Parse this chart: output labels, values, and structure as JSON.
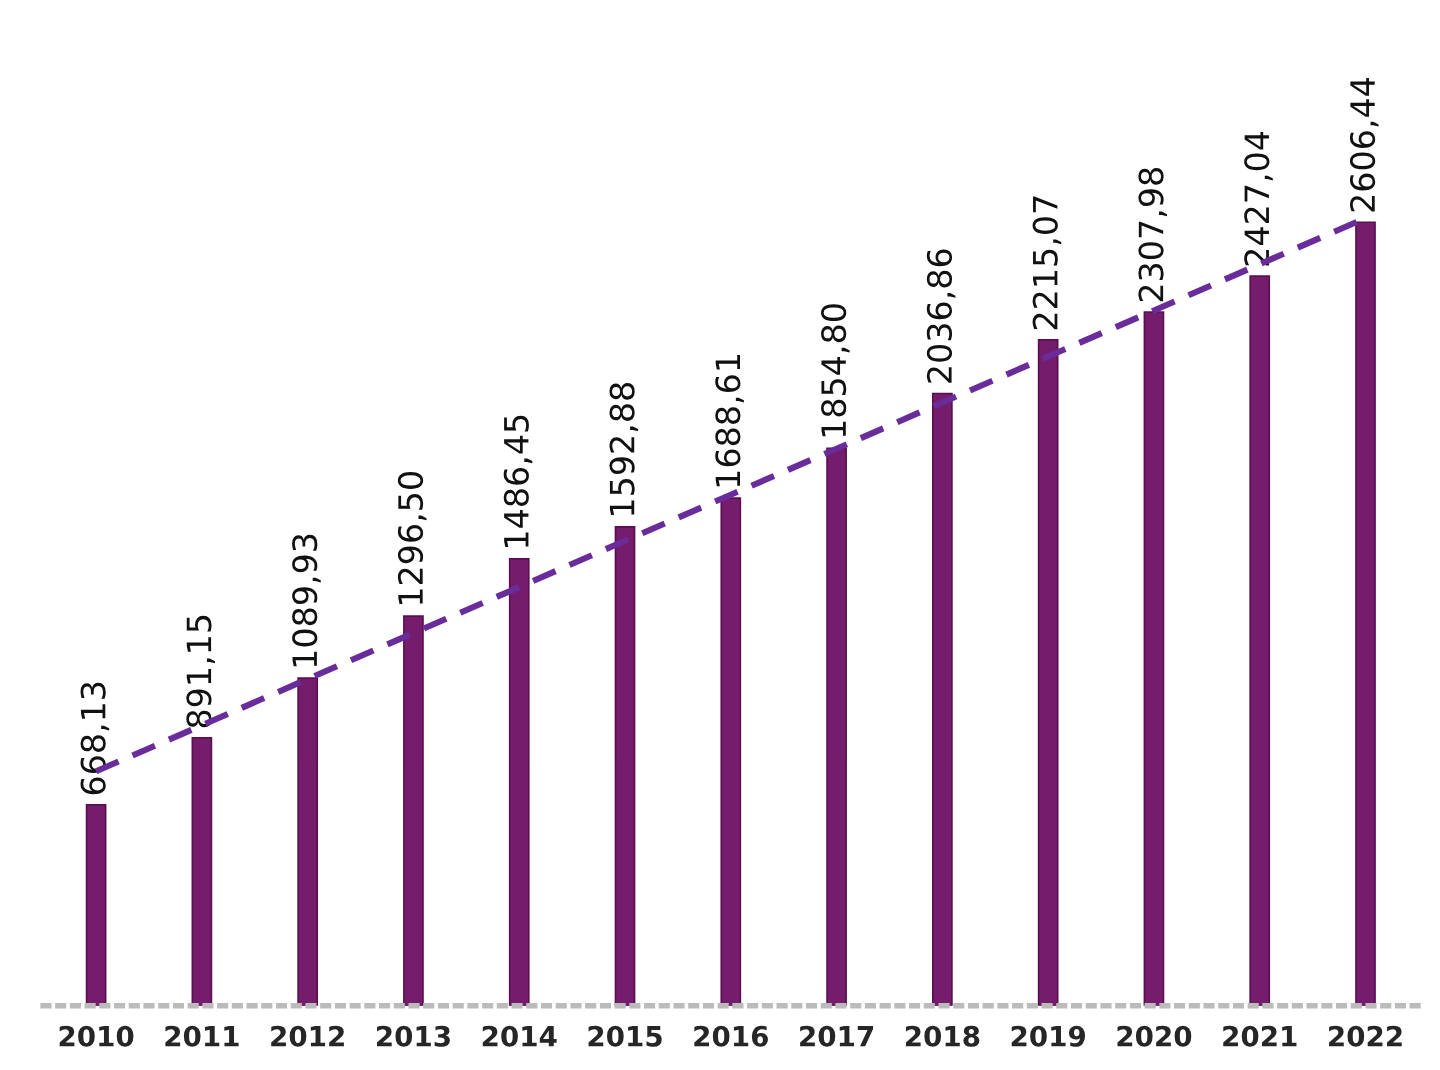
{
  "chart_data": {
    "type": "bar",
    "categories": [
      "2010",
      "2011",
      "2012",
      "2013",
      "2014",
      "2015",
      "2016",
      "2017",
      "2018",
      "2019",
      "2020",
      "2021",
      "2022"
    ],
    "series": [
      {
        "color": "#761c6c",
        "values": [
          668.13,
          891.15,
          1089.93,
          1296.5,
          1486.45,
          1592.88,
          1688.61,
          1854.8,
          2036.86,
          2215.07,
          2307.98,
          2427.04,
          2606.44
        ],
        "value_labels": [
          "668,13",
          "891,15",
          "1089,93",
          "1296,50",
          "1486,45",
          "1592,88",
          "1688,61",
          "1854,80",
          "2036,86",
          "2215,07",
          "2307,98",
          "2427,04",
          "2606,44"
        ]
      },
      {
        "type": "line",
        "color": "#6a2c9a",
        "line_style": "dashed",
        "values": [
          780,
          933,
          1087,
          1240,
          1393,
          1547,
          1700,
          1853,
          2007,
          2160,
          2313,
          2467,
          2620
        ]
      }
    ],
    "tick_labels": "x",
    "grid": false,
    "legend": false
  }
}
